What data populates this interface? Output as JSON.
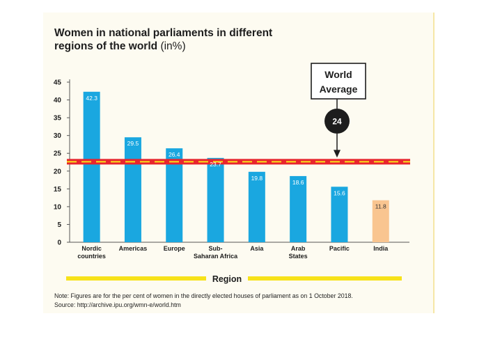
{
  "title": {
    "line1": "Women in  national parliaments in different",
    "line2": "regions of the world",
    "unit": "(in%)"
  },
  "note": {
    "line1": "Note: Figures are for the per cent of women in the directly elected houses of parliament as on 1 October 2018.",
    "line2": "Source: http://archive.ipu.org/wmn-e/world.htm"
  },
  "chart_data": {
    "type": "bar",
    "categories": [
      [
        "Nordic",
        "countries"
      ],
      [
        "Americas"
      ],
      [
        "Europe"
      ],
      [
        "Sub-",
        "Saharan Africa"
      ],
      [
        "Asia"
      ],
      [
        "Arab",
        "States"
      ],
      [
        "Pacific"
      ],
      [
        "India"
      ]
    ],
    "values": [
      42.3,
      29.5,
      26.4,
      23.7,
      19.8,
      18.6,
      15.6,
      11.8
    ],
    "data_labels": [
      "42.3",
      "29.5",
      "26.4",
      "23.7",
      "19.8",
      "18.6",
      "15.6",
      "11.8"
    ],
    "colors": [
      "#1aa7e0",
      "#1aa7e0",
      "#1aa7e0",
      "#1aa7e0",
      "#1aa7e0",
      "#1aa7e0",
      "#1aa7e0",
      "#f9c590"
    ],
    "xlabel": "Region",
    "ylim": [
      0,
      45
    ],
    "yticks": [
      0,
      5,
      10,
      15,
      20,
      25,
      30,
      35,
      40,
      45
    ],
    "reference_line": {
      "value": 24,
      "label_lines": [
        "World",
        "Average"
      ],
      "value_label": "24",
      "line_color": "#e8262d",
      "dash_color": "#f7e21a"
    },
    "grid": false,
    "legend": "none"
  }
}
